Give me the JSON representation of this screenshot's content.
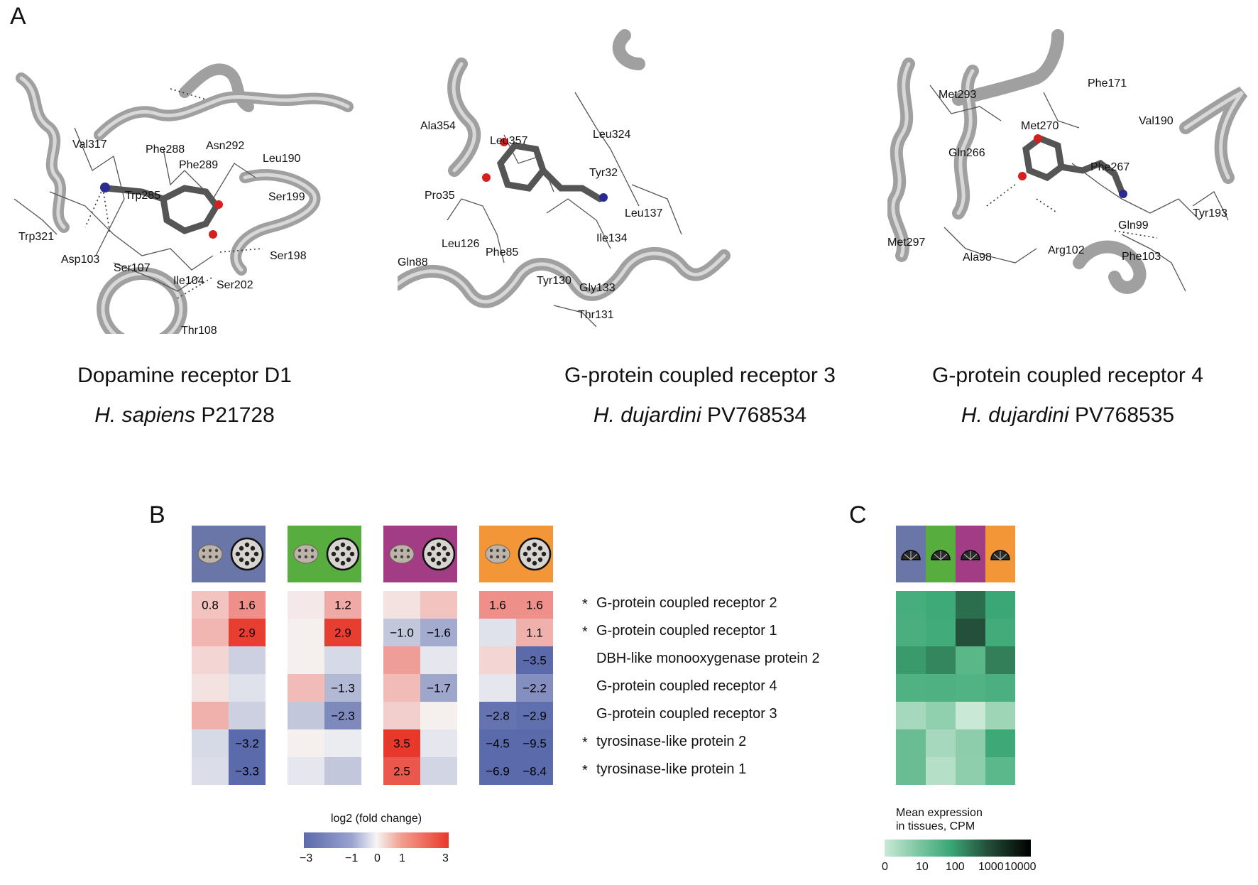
{
  "panels": {
    "a": "A",
    "b": "B",
    "c": "C"
  },
  "structures": [
    {
      "title": "Dopamine receptor D1",
      "species": "H. sapiens",
      "accession": "P21728",
      "residues": [
        "Val317",
        "Phe288",
        "Asn292",
        "Leu190",
        "Phe289",
        "Ser199",
        "Trp285",
        "Trp321",
        "Asp103",
        "Ser198",
        "Ser107",
        "Ile104",
        "Ser202",
        "Thr108"
      ]
    },
    {
      "title": "G-protein coupled receptor 3",
      "species": "H. dujardini",
      "accession": "PV768534",
      "residues": [
        "Ala354",
        "Leu357",
        "Leu324",
        "Tyr32",
        "Pro35",
        "Leu137",
        "Ile134",
        "Leu126",
        "Phe85",
        "Gln88",
        "Tyr130",
        "Gly133",
        "Thr131"
      ]
    },
    {
      "title": "G-protein coupled receptor  4",
      "species": "H. dujardini",
      "accession": "PV768535",
      "residues": [
        "Met293",
        "Phe171",
        "Met270",
        "Val190",
        "Gln266",
        "Phe267",
        "Tyr193",
        "Gln99",
        "Met297",
        "Ala98",
        "Arg102",
        "Phe103"
      ]
    }
  ],
  "heatmap_b": {
    "genes": [
      {
        "name": "G-protein coupled receptor 2",
        "star": "*"
      },
      {
        "name": "G-protein coupled receptor 1",
        "star": "*"
      },
      {
        "name": "DBH-like monooxygenase protein 2",
        "star": ""
      },
      {
        "name": "G-protein coupled receptor 4",
        "star": ""
      },
      {
        "name": "G-protein coupled receptor 3",
        "star": ""
      },
      {
        "name": "tyrosinase-like protein 2",
        "star": "*"
      },
      {
        "name": "tyrosinase-like protein 1",
        "star": "*"
      }
    ],
    "group_colors": [
      "#6a75a8",
      "#58ad3f",
      "#a23d85",
      "#f39637"
    ],
    "values": [
      [
        0.8,
        1.6,
        0.2,
        1.2,
        0.3,
        0.8,
        1.6,
        1.6
      ],
      [
        1.0,
        2.9,
        0.1,
        2.9,
        -1.0,
        -1.6,
        -0.4,
        1.1
      ],
      [
        0.5,
        -0.8,
        0.1,
        -0.6,
        1.4,
        -0.3,
        0.5,
        -3.5
      ],
      [
        0.3,
        -0.4,
        0.9,
        -1.3,
        0.9,
        -1.7,
        -0.3,
        -2.2
      ],
      [
        1.1,
        -0.8,
        -1.0,
        -2.3,
        0.6,
        0.1,
        -2.8,
        -2.9
      ],
      [
        -0.6,
        -3.2,
        0.1,
        -0.2,
        3.5,
        -0.3,
        -4.5,
        -9.5
      ],
      [
        -0.5,
        -3.3,
        -0.3,
        -1.0,
        2.5,
        -0.7,
        -6.9,
        -8.4
      ]
    ],
    "labels": [
      [
        "0.8",
        "1.6",
        "",
        "1.2",
        "",
        "",
        "1.6",
        "1.6"
      ],
      [
        "",
        "2.9",
        "",
        "2.9",
        "−1.0",
        "−1.6",
        "",
        "1.1"
      ],
      [
        "",
        "",
        "",
        "",
        "",
        "",
        "",
        "−3.5"
      ],
      [
        "",
        "",
        "",
        "−1.3",
        "",
        "−1.7",
        "",
        "−2.2"
      ],
      [
        "",
        "",
        "",
        "−2.3",
        "",
        "",
        "−2.8",
        "−2.9"
      ],
      [
        "",
        "−3.2",
        "",
        "",
        "3.5",
        "",
        "−4.5",
        "−9.5"
      ],
      [
        "",
        "−3.3",
        "",
        "",
        "2.5",
        "",
        "−6.9",
        "−8.4"
      ]
    ],
    "legend": {
      "title": "log2 (fold change)",
      "ticks": [
        "−3",
        "−1",
        "0",
        "1",
        "3"
      ],
      "low": "#5b6aab",
      "mid": "#f5f5f5",
      "high": "#e8382b"
    }
  },
  "heatmap_c": {
    "group_colors": [
      "#6a75a8",
      "#58ad3f",
      "#a23d85",
      "#f39637"
    ],
    "cells": [
      [
        "#47ad7e",
        "#3eaa78",
        "#2a6e4e",
        "#3ba776"
      ],
      [
        "#4aae7f",
        "#41ab7a",
        "#24503b",
        "#43ab7a"
      ],
      [
        "#3b9a6c",
        "#34865f",
        "#5ab888",
        "#327f5a"
      ],
      [
        "#50b283",
        "#4fb182",
        "#51b283",
        "#4caf81"
      ],
      [
        "#a5d8bc",
        "#91d0af",
        "#c9e8d6",
        "#9ed5b7"
      ],
      [
        "#6abd93",
        "#a6d8bd",
        "#8dcdac",
        "#3ea877"
      ],
      [
        "#6abd93",
        "#b5dfc7",
        "#8fceac",
        "#5bb88a"
      ]
    ],
    "legend": {
      "title_line1": "Mean expression",
      "title_line2": "in tissues, CPM",
      "ticks": [
        "0",
        "10",
        "100",
        "1000",
        "10000"
      ]
    }
  }
}
